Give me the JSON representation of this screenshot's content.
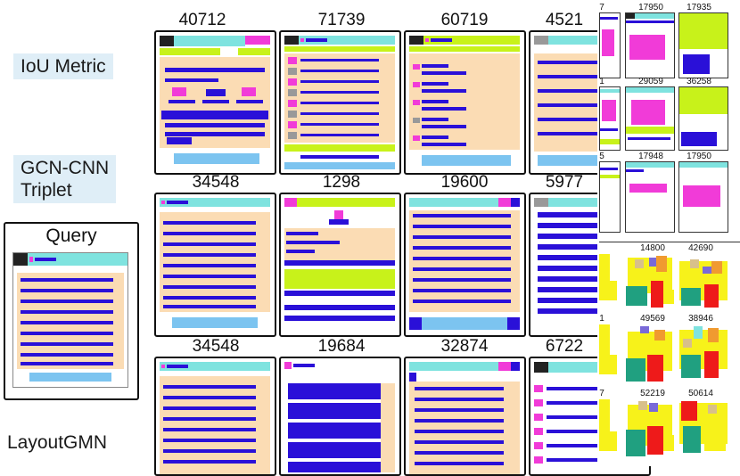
{
  "methods": {
    "iou": "IoU Metric",
    "gcn_line1": "GCN-CNN",
    "gcn_line2": "Triplet",
    "layoutgmn": "LayoutGMN"
  },
  "query": {
    "label": "Query"
  },
  "grid": {
    "row1": [
      "40712",
      "71739",
      "60719",
      "4521"
    ],
    "row2": [
      "34548",
      "1298",
      "19600",
      "5977"
    ],
    "row3": [
      "34548",
      "19684",
      "32874",
      "6722"
    ]
  },
  "right_top": {
    "row1": [
      "7",
      "17950",
      "17935"
    ],
    "row2": [
      "1",
      "29059",
      "36258"
    ],
    "row3": [
      "5",
      "17948",
      "17950"
    ]
  },
  "right_bottom": {
    "row1": [
      "14800",
      "42690"
    ],
    "row2": [
      "1",
      "49569",
      "38946"
    ],
    "row3": [
      "7",
      "52219",
      "50614"
    ]
  }
}
